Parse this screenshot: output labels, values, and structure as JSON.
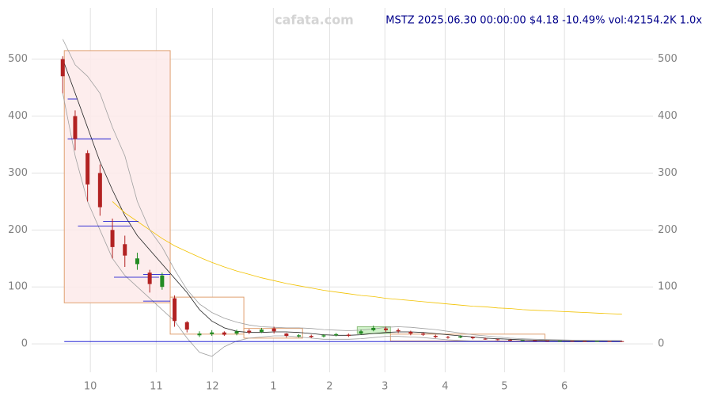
{
  "chart_data": {
    "type": "candlestick",
    "title": "MSTZ 2025.06.30 00:00:00 $4.18 -10.49% vol:42154.2K 1.0x",
    "watermark": "cafata.com",
    "x": [
      0,
      4,
      8,
      12,
      16,
      20,
      24,
      28,
      32,
      36,
      40,
      44,
      48,
      52,
      56,
      60,
      64,
      68,
      72,
      76,
      80,
      84,
      88,
      92,
      96,
      100,
      104,
      108,
      112,
      116,
      120,
      124,
      128,
      132,
      136,
      140,
      144,
      148,
      152,
      156,
      160,
      164,
      168,
      172,
      176,
      180
    ],
    "open": [
      500,
      400,
      335,
      300,
      200,
      175,
      140,
      125,
      100,
      80,
      38,
      15,
      17,
      20,
      18,
      23,
      21,
      27,
      18,
      13,
      14,
      13,
      15,
      16,
      18,
      24,
      27,
      24,
      21,
      18,
      14,
      12,
      11,
      12,
      9,
      8,
      7,
      6,
      6.2,
      5.6,
      5,
      5.2,
      4.9,
      4.6,
      4.8,
      4.67
    ],
    "high": [
      505,
      410,
      340,
      315,
      220,
      190,
      160,
      130,
      125,
      85,
      40,
      22,
      24,
      22,
      25,
      26,
      28,
      30,
      19,
      17,
      16,
      17,
      19,
      18,
      25,
      32,
      30,
      27,
      23,
      20,
      16,
      14,
      15,
      13,
      11,
      9,
      8,
      7.5,
      6.8,
      6,
      5.8,
      5.5,
      5.2,
      5,
      5,
      4.8
    ],
    "low": [
      440,
      340,
      250,
      225,
      150,
      135,
      130,
      90,
      95,
      30,
      20,
      12,
      14,
      14,
      15,
      17,
      19,
      18,
      11,
      11,
      10,
      11,
      13,
      12,
      16,
      22,
      21,
      19,
      15,
      14,
      10,
      9,
      10,
      8,
      7,
      6,
      5,
      5.5,
      5,
      4.6,
      4.7,
      4.6,
      4.4,
      4.3,
      4.5,
      4.1
    ],
    "close": [
      470,
      360,
      280,
      240,
      170,
      155,
      150,
      105,
      120,
      40,
      25,
      18,
      20,
      16,
      22,
      20,
      25,
      22,
      14,
      15,
      12,
      15,
      17,
      14,
      22,
      28,
      24,
      22,
      18,
      16,
      12,
      11,
      13,
      10,
      8,
      7,
      6,
      6.5,
      5.5,
      5,
      5.2,
      4.9,
      4.7,
      4.8,
      4.67,
      4.18
    ],
    "up_color": "#228b22",
    "down_color": "#b22222",
    "lines": [
      {
        "color": "#222222",
        "values": [
          500,
          440,
          380,
          320,
          270,
          225,
          190,
          165,
          140,
          115,
          90,
          60,
          40,
          28,
          22,
          20,
          20,
          21,
          21,
          20,
          18,
          16,
          15,
          15,
          16,
          18,
          20,
          21,
          21,
          20,
          18,
          16,
          14,
          12,
          10,
          9,
          8,
          7,
          6.5,
          6,
          5.6,
          5.3,
          5.1,
          4.9,
          4.8,
          4.7
        ]
      },
      {
        "color": "#f2c200",
        "values": [
          null,
          null,
          null,
          null,
          250,
          230,
          215,
          200,
          185,
          172,
          162,
          152,
          143,
          135,
          128,
          122,
          116,
          111,
          106,
          102,
          98,
          94,
          91,
          88,
          85,
          83,
          80,
          78,
          76,
          74,
          72,
          70,
          68,
          66,
          65,
          63,
          62,
          60,
          59,
          58,
          57,
          56,
          55,
          54,
          53,
          52
        ]
      },
      {
        "color": "#a0a0a0",
        "values": [
          535,
          490,
          470,
          440,
          380,
          330,
          250,
          200,
          170,
          130,
          95,
          70,
          55,
          45,
          38,
          33,
          30,
          29,
          28,
          28,
          27,
          25,
          24,
          23,
          24,
          26,
          29,
          30,
          29,
          27,
          25,
          22,
          19,
          16,
          14,
          12,
          10,
          9,
          8,
          7.5,
          7,
          6.5,
          6.2,
          6,
          5.8,
          5.6
        ]
      },
      {
        "color": "#a0a0a0",
        "values": [
          440,
          330,
          250,
          200,
          150,
          120,
          100,
          80,
          60,
          40,
          10,
          -15,
          -22,
          -5,
          5,
          10,
          12,
          14,
          14,
          12,
          10,
          8,
          8,
          8,
          9,
          11,
          13,
          13,
          12,
          11,
          9,
          7,
          6,
          5,
          4.5,
          4,
          3.8,
          3.7,
          3.6,
          3.6,
          3.6,
          3.6,
          3.6,
          3.6,
          3.6,
          3.6
        ]
      }
    ],
    "boxes": [
      {
        "x": [
          0.5,
          34.6
        ],
        "y": [
          72,
          515
        ],
        "fill": "#fdeaea",
        "stroke": "#e0a070"
      },
      {
        "x": [
          34.6,
          58.3
        ],
        "y": [
          17,
          82
        ],
        "fill": "#ffffff",
        "stroke": "#e0a070"
      },
      {
        "x": [
          58.3,
          77.2
        ],
        "y": [
          10,
          27
        ],
        "fill": "#ffffff",
        "stroke": "#e0a070"
      },
      {
        "x": [
          94.8,
          105.5
        ],
        "y": [
          18,
          30
        ],
        "fill": "#c8f0c0",
        "stroke": "#90c080"
      },
      {
        "x": [
          105.5,
          155.2
        ],
        "y": [
          5,
          17
        ],
        "fill": "#ffffff",
        "stroke": "#e0a070"
      }
    ],
    "levels": [
      {
        "x": [
          0.5,
          180
        ],
        "y": 4
      },
      {
        "x": [
          1.6,
          4.6
        ],
        "y": 430
      },
      {
        "x": [
          1.6,
          15.5
        ],
        "y": 360
      },
      {
        "x": [
          13,
          24.4
        ],
        "y": 215
      },
      {
        "x": [
          4.9,
          21.8
        ],
        "y": 207
      },
      {
        "x": [
          16.5,
          31
        ],
        "y": 117
      },
      {
        "x": [
          25.9,
          34.6
        ],
        "y": 122
      },
      {
        "x": [
          25.9,
          34.6
        ],
        "y": 75
      }
    ],
    "level_color": "#0000cd",
    "xlim": [
      -10,
      190
    ],
    "ylim": [
      -50,
      590
    ],
    "xticks": [
      {
        "value": 8.9,
        "label": "10"
      },
      {
        "value": 30.1,
        "label": "11"
      },
      {
        "value": 48.2,
        "label": "12"
      },
      {
        "value": 67.8,
        "label": "1"
      },
      {
        "value": 85.9,
        "label": "2"
      },
      {
        "value": 103.7,
        "label": "3"
      },
      {
        "value": 123.1,
        "label": "4"
      },
      {
        "value": 142.2,
        "label": "5"
      },
      {
        "value": 161.5,
        "label": "6"
      }
    ],
    "yticks": [
      0,
      100,
      200,
      300,
      400,
      500
    ],
    "grid": true
  }
}
